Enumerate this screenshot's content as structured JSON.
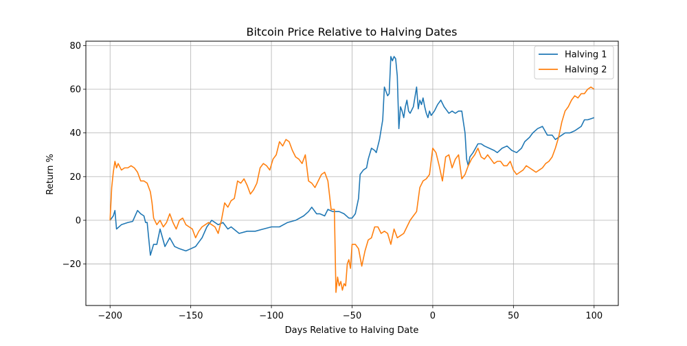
{
  "chart_data": {
    "type": "line",
    "title": "Bitcoin Price Relative to Halving Dates",
    "xlabel": "Days Relative to Halving Date",
    "ylabel": "Return %",
    "xlim": [
      -215,
      115
    ],
    "ylim": [
      -39,
      82
    ],
    "xticks": [
      -200,
      -150,
      -100,
      -50,
      0,
      50,
      100
    ],
    "xtick_labels": [
      "−200",
      "−150",
      "−100",
      "−50",
      "0",
      "50",
      "100"
    ],
    "yticks": [
      -20,
      0,
      20,
      40,
      60,
      80
    ],
    "ytick_labels": [
      "−20",
      "0",
      "20",
      "40",
      "60",
      "80"
    ],
    "grid": true,
    "legend_position": "top-right",
    "series": [
      {
        "name": "Halving 1",
        "color": "#1f77b4",
        "x": [
          -200,
          -198,
          -197,
          -196,
          -193,
          -189,
          -186,
          -183,
          -181,
          -179,
          -178,
          -177,
          -175,
          -173,
          -171,
          -169,
          -166,
          -163,
          -160,
          -157,
          -153,
          -150,
          -147,
          -145,
          -143,
          -140,
          -137,
          -133,
          -130,
          -127,
          -125,
          -120,
          -115,
          -110,
          -105,
          -100,
          -95,
          -90,
          -85,
          -80,
          -77,
          -75,
          -72,
          -70,
          -67,
          -65,
          -62,
          -60,
          -58,
          -55,
          -52,
          -50,
          -48,
          -46,
          -45,
          -43,
          -41,
          -40,
          -38,
          -36,
          -35,
          -33,
          -31,
          -30,
          -28,
          -27,
          -26,
          -25,
          -24,
          -23,
          -22,
          -21,
          -20,
          -19,
          -18,
          -17,
          -16,
          -15,
          -14,
          -12,
          -10,
          -9,
          -8,
          -7,
          -6,
          -5,
          -4,
          -3,
          -2,
          -1,
          0,
          1,
          3,
          5,
          7,
          9,
          10,
          12,
          14,
          16,
          18,
          19,
          20,
          21,
          22,
          23,
          25,
          28,
          30,
          32,
          35,
          38,
          40,
          43,
          46,
          49,
          52,
          55,
          57,
          60,
          62,
          65,
          68,
          71,
          74,
          76,
          78,
          80,
          82,
          85,
          88,
          90,
          92,
          94,
          96,
          98,
          100
        ],
        "y": [
          0,
          2,
          4.5,
          -4,
          -2,
          -1,
          -0.5,
          4.5,
          3,
          2,
          -1,
          -1,
          -16,
          -11,
          -11,
          -4,
          -12,
          -8,
          -12,
          -13,
          -14,
          -13,
          -12,
          -10,
          -8,
          -3,
          0,
          -2,
          -1,
          -4,
          -3,
          -6,
          -5,
          -5,
          -4,
          -3,
          -3,
          -1,
          0,
          2,
          4,
          6,
          3,
          3,
          2,
          5,
          4,
          4,
          4,
          3,
          1,
          1,
          3,
          10,
          21,
          23,
          24,
          28,
          33,
          32,
          31,
          37,
          46,
          61,
          57,
          58,
          75,
          73,
          75,
          74,
          66,
          42,
          52,
          50,
          47,
          52,
          55,
          50,
          49,
          52,
          61,
          51,
          55,
          53,
          56,
          52,
          49,
          47,
          50,
          48,
          49,
          50,
          53,
          55,
          52,
          50,
          49,
          50,
          49,
          50,
          50,
          45,
          40,
          28,
          25,
          29,
          31,
          35,
          35,
          34,
          33,
          32,
          31,
          33,
          34,
          32,
          31,
          33,
          36,
          38,
          40,
          42,
          43,
          39,
          39,
          37,
          38,
          39,
          40,
          40,
          41,
          42,
          43,
          46,
          46,
          46.5,
          47
        ]
      },
      {
        "name": "Halving 2",
        "color": "#ff7f0e",
        "x": [
          -200,
          -199,
          -198,
          -197,
          -196,
          -195,
          -193,
          -191,
          -189,
          -187,
          -185,
          -183,
          -181,
          -179,
          -177,
          -175,
          -174,
          -173,
          -171,
          -169,
          -167,
          -165,
          -163,
          -161,
          -159,
          -157,
          -155,
          -153,
          -151,
          -149,
          -147,
          -145,
          -143,
          -141,
          -139,
          -137,
          -135,
          -133,
          -131,
          -129,
          -127,
          -125,
          -123,
          -121,
          -119,
          -117,
          -115,
          -113,
          -111,
          -109,
          -107,
          -105,
          -103,
          -101,
          -99,
          -97,
          -95,
          -93,
          -91,
          -89,
          -87,
          -85,
          -83,
          -81,
          -79,
          -77,
          -75,
          -73,
          -71,
          -69,
          -67,
          -65,
          -63,
          -62,
          -61,
          -60,
          -59,
          -58,
          -57,
          -56,
          -55,
          -54,
          -53,
          -52,
          -51,
          -50,
          -48,
          -46,
          -44,
          -42,
          -40,
          -38,
          -36,
          -34,
          -32,
          -30,
          -28,
          -26,
          -24,
          -22,
          -20,
          -18,
          -16,
          -14,
          -12,
          -10,
          -8,
          -6,
          -4,
          -2,
          0,
          2,
          4,
          6,
          8,
          10,
          12,
          14,
          16,
          18,
          20,
          22,
          24,
          26,
          28,
          30,
          32,
          34,
          36,
          38,
          40,
          42,
          44,
          46,
          48,
          50,
          52,
          54,
          56,
          58,
          60,
          62,
          64,
          66,
          68,
          70,
          72,
          74,
          76,
          78,
          80,
          82,
          84,
          86,
          88,
          90,
          92,
          94,
          96,
          98,
          100
        ],
        "y": [
          0,
          15,
          22,
          27,
          24,
          26,
          23,
          24,
          24,
          25,
          24,
          22,
          18,
          18,
          17,
          13,
          8,
          1,
          -2,
          0,
          -3,
          -1,
          3,
          -1,
          -4,
          0,
          1,
          -2,
          -3,
          -4,
          -8,
          -5,
          -3,
          -2,
          -1,
          -2,
          -3,
          -6,
          0,
          8,
          6,
          9,
          10,
          18,
          17,
          19,
          16,
          12,
          14,
          17,
          24,
          26,
          25,
          23,
          28,
          30,
          36,
          34,
          37,
          36,
          32,
          29,
          28,
          26,
          30,
          18,
          17,
          15,
          18,
          21,
          22,
          18,
          5,
          5,
          5,
          -33,
          -26,
          -30,
          -28,
          -32,
          -29,
          -30,
          -20,
          -18,
          -22,
          -11,
          -11,
          -13,
          -21,
          -14,
          -9,
          -8,
          -3,
          -3,
          -6,
          -5,
          -6,
          -11,
          -4,
          -8,
          -7,
          -6,
          -3,
          0,
          2,
          4,
          15,
          18,
          19,
          21,
          33,
          31,
          25,
          18,
          29,
          30,
          24,
          28,
          30,
          19,
          21,
          25,
          28,
          30,
          33,
          29,
          28,
          30,
          28,
          26,
          27,
          27,
          25,
          25,
          27,
          23,
          21,
          22,
          23,
          25,
          24,
          23,
          22,
          23,
          24,
          26,
          27,
          29,
          33,
          38,
          45,
          50,
          52,
          55,
          57,
          56,
          58,
          58,
          60,
          61,
          60
        ]
      }
    ]
  }
}
